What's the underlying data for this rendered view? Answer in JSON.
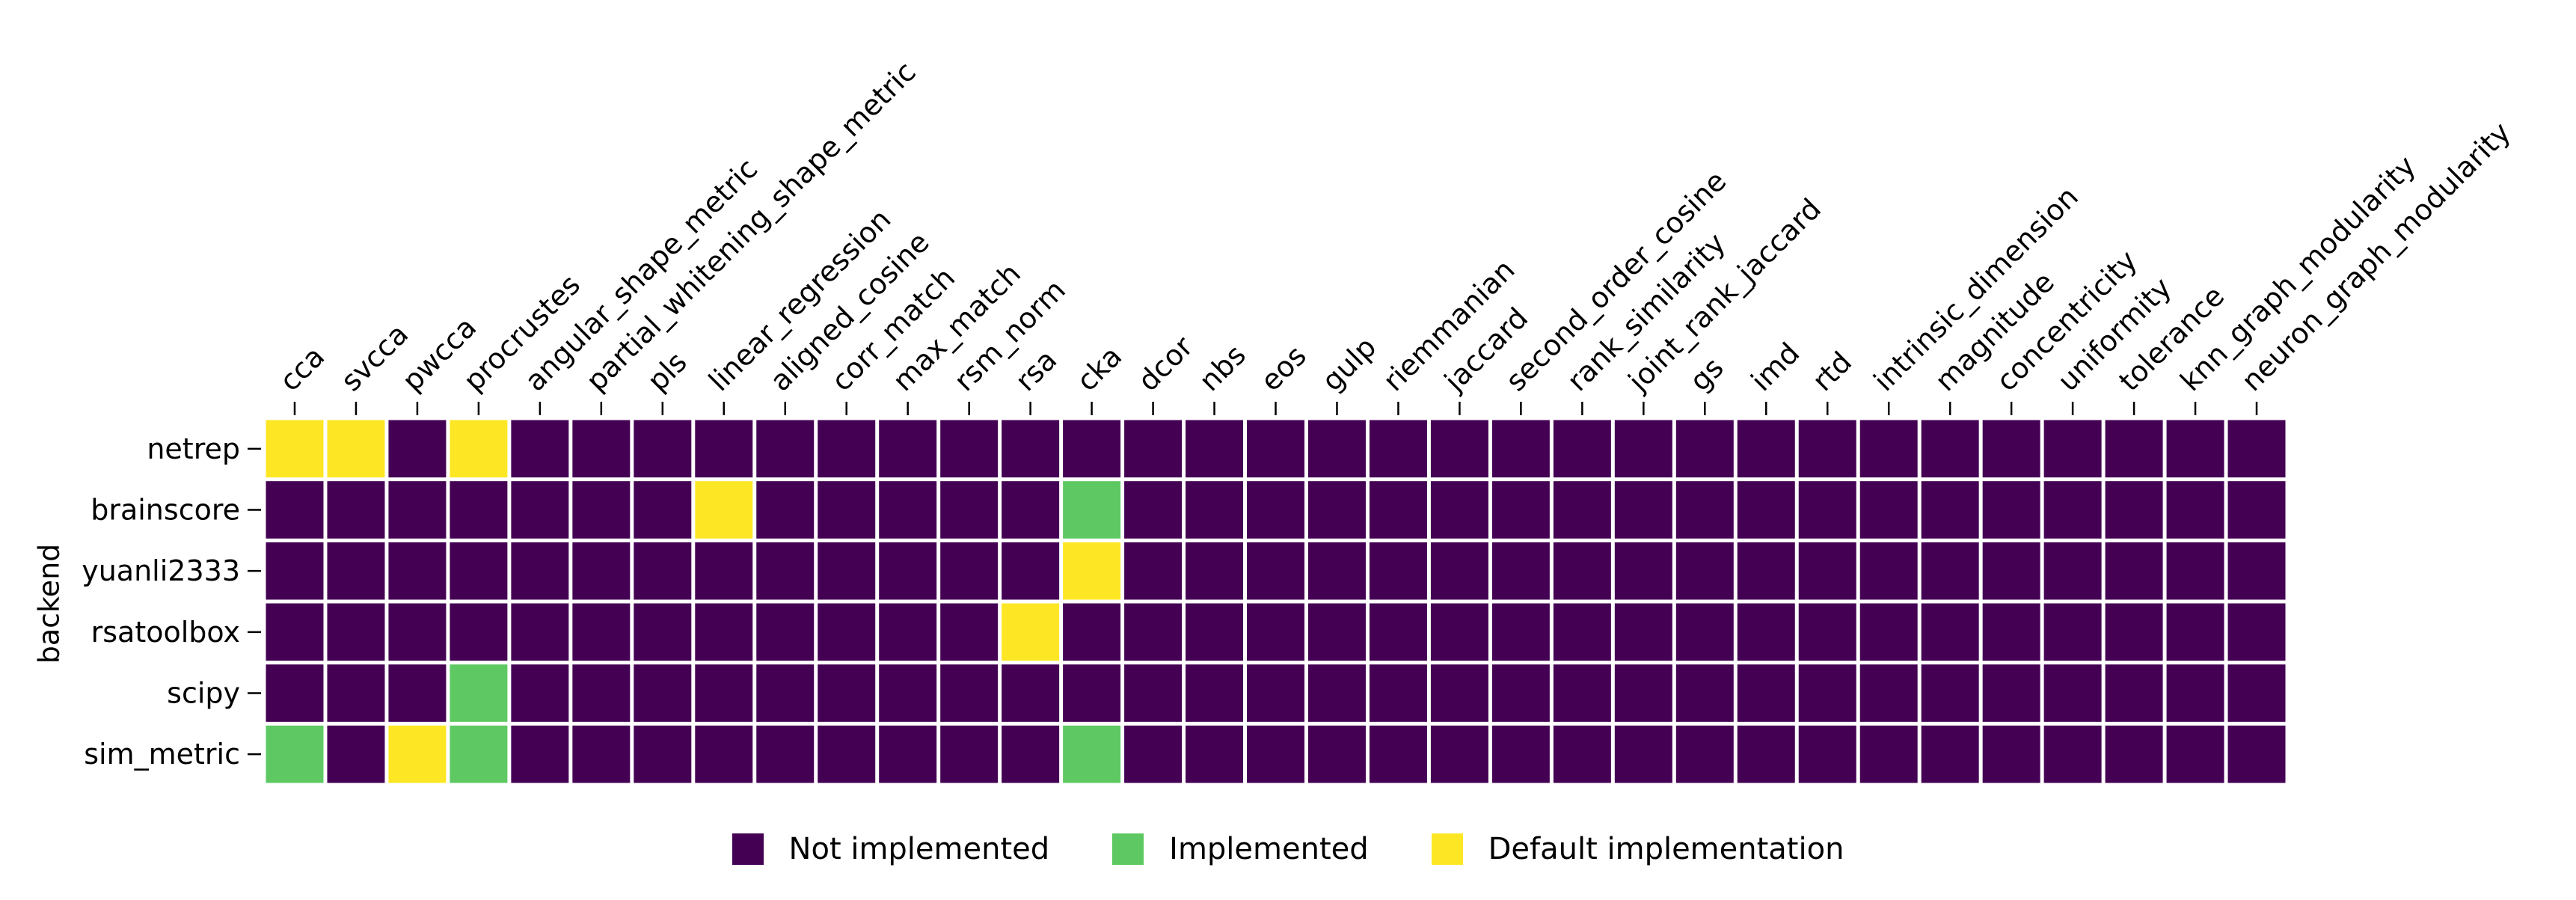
{
  "chart_data": {
    "type": "heatmap",
    "title": "",
    "xlabel": "",
    "ylabel": "backend",
    "x_tick_position": "top",
    "x_tick_rotation_deg": 45,
    "grid": false,
    "colormap": "viridis",
    "columns": [
      "cca",
      "svcca",
      "pwcca",
      "procrustes",
      "angular_shape_metric",
      "partial_whitening_shape_metric",
      "pls",
      "linear_regression",
      "aligned_cosine",
      "corr_match",
      "max_match",
      "rsm_norm",
      "rsa",
      "cka",
      "dcor",
      "nbs",
      "eos",
      "gulp",
      "riemmanian",
      "jaccard",
      "second_order_cosine",
      "rank_similarity",
      "joint_rank_jaccard",
      "gs",
      "imd",
      "rtd",
      "intrinsic_dimension",
      "magnitude",
      "concentricity",
      "uniformity",
      "tolerance",
      "knn_graph_modularity",
      "neuron_graph_modularity"
    ],
    "rows": [
      "netrep",
      "brainscore",
      "yuanli2333",
      "rsatoolbox",
      "scipy",
      "sim_metric"
    ],
    "values": [
      [
        2,
        2,
        0,
        2,
        0,
        0,
        0,
        0,
        0,
        0,
        0,
        0,
        0,
        0,
        0,
        0,
        0,
        0,
        0,
        0,
        0,
        0,
        0,
        0,
        0,
        0,
        0,
        0,
        0,
        0,
        0,
        0,
        0
      ],
      [
        0,
        0,
        0,
        0,
        0,
        0,
        0,
        2,
        0,
        0,
        0,
        0,
        0,
        1,
        0,
        0,
        0,
        0,
        0,
        0,
        0,
        0,
        0,
        0,
        0,
        0,
        0,
        0,
        0,
        0,
        0,
        0,
        0
      ],
      [
        0,
        0,
        0,
        0,
        0,
        0,
        0,
        0,
        0,
        0,
        0,
        0,
        0,
        2,
        0,
        0,
        0,
        0,
        0,
        0,
        0,
        0,
        0,
        0,
        0,
        0,
        0,
        0,
        0,
        0,
        0,
        0,
        0
      ],
      [
        0,
        0,
        0,
        0,
        0,
        0,
        0,
        0,
        0,
        0,
        0,
        0,
        2,
        0,
        0,
        0,
        0,
        0,
        0,
        0,
        0,
        0,
        0,
        0,
        0,
        0,
        0,
        0,
        0,
        0,
        0,
        0,
        0
      ],
      [
        0,
        0,
        0,
        1,
        0,
        0,
        0,
        0,
        0,
        0,
        0,
        0,
        0,
        0,
        0,
        0,
        0,
        0,
        0,
        0,
        0,
        0,
        0,
        0,
        0,
        0,
        0,
        0,
        0,
        0,
        0,
        0,
        0
      ],
      [
        1,
        0,
        2,
        1,
        0,
        0,
        0,
        0,
        0,
        0,
        0,
        0,
        0,
        1,
        0,
        0,
        0,
        0,
        0,
        0,
        0,
        0,
        0,
        0,
        0,
        0,
        0,
        0,
        0,
        0,
        0,
        0,
        0
      ]
    ],
    "categories": [
      {
        "code": 0,
        "label": "Not implemented",
        "color": "#440154"
      },
      {
        "code": 1,
        "label": "Implemented",
        "color": "#5ec962"
      },
      {
        "code": 2,
        "label": "Default implementation",
        "color": "#fde725"
      }
    ],
    "legend_position": "bottom-center"
  }
}
